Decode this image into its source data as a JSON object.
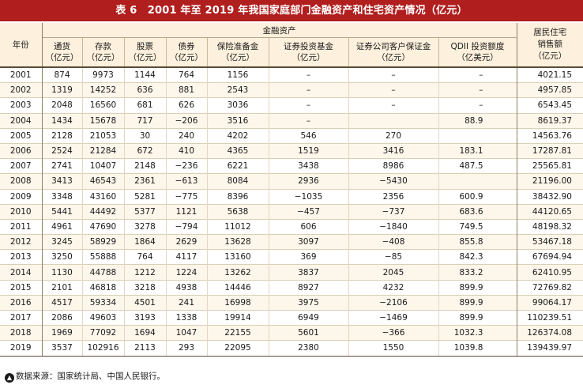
{
  "title": "表 6　2001 年至 2019 年我国家庭部门金融资产和住宅资产情况（亿元）",
  "header": {
    "year": "年份",
    "group": "金融资产",
    "columns": [
      "通货\n（亿元）",
      "存款\n（亿元）",
      "股票\n（亿元）",
      "债券\n（亿元）",
      "保险准备金\n（亿元）",
      "证券投资基金\n（亿元）",
      "证券公司客户保证金\n（亿元）",
      "QDII 投资额度\n（亿美元）"
    ],
    "housing": "居民住宅\n销售额\n（亿元）"
  },
  "rows": [
    [
      "2001",
      "874",
      "9973",
      "1144",
      "764",
      "1156",
      "–",
      "–",
      "–",
      "4021.15"
    ],
    [
      "2002",
      "1319",
      "14252",
      "636",
      "881",
      "2543",
      "–",
      "–",
      "–",
      "4957.85"
    ],
    [
      "2003",
      "2048",
      "16560",
      "681",
      "626",
      "3036",
      "–",
      "–",
      "–",
      "6543.45"
    ],
    [
      "2004",
      "1434",
      "15678",
      "717",
      "−206",
      "3516",
      "–",
      "",
      "88.9",
      "8619.37"
    ],
    [
      "2005",
      "2128",
      "21053",
      "30",
      "240",
      "4202",
      "546",
      "270",
      "",
      "14563.76"
    ],
    [
      "2006",
      "2524",
      "21284",
      "672",
      "410",
      "4365",
      "1519",
      "3416",
      "183.1",
      "17287.81"
    ],
    [
      "2007",
      "2741",
      "10407",
      "2148",
      "−236",
      "6221",
      "3438",
      "8986",
      "487.5",
      "25565.81"
    ],
    [
      "2008",
      "3413",
      "46543",
      "2361",
      "−613",
      "8084",
      "2936",
      "−5430",
      "",
      "21196.00"
    ],
    [
      "2009",
      "3348",
      "43160",
      "5281",
      "−775",
      "8396",
      "−1035",
      "2356",
      "600.9",
      "38432.90"
    ],
    [
      "2010",
      "5441",
      "44492",
      "5377",
      "1121",
      "5638",
      "−457",
      "−737",
      "683.6",
      "44120.65"
    ],
    [
      "2011",
      "4961",
      "47690",
      "3278",
      "−794",
      "11012",
      "606",
      "−1840",
      "749.5",
      "48198.32"
    ],
    [
      "2012",
      "3245",
      "58929",
      "1864",
      "2629",
      "13628",
      "3097",
      "−408",
      "855.8",
      "53467.18"
    ],
    [
      "2013",
      "3250",
      "55888",
      "764",
      "4117",
      "13160",
      "369",
      "−85",
      "842.3",
      "67694.94"
    ],
    [
      "2014",
      "1130",
      "44788",
      "1212",
      "1224",
      "13262",
      "3837",
      "2045",
      "833.2",
      "62410.95"
    ],
    [
      "2015",
      "2101",
      "46818",
      "3218",
      "4938",
      "14446",
      "8927",
      "4232",
      "899.9",
      "72769.82"
    ],
    [
      "2016",
      "4517",
      "59334",
      "4501",
      "241",
      "16998",
      "3975",
      "−2106",
      "899.9",
      "99064.17"
    ],
    [
      "2017",
      "2086",
      "49603",
      "3193",
      "1338",
      "19914",
      "6949",
      "−1469",
      "899.9",
      "110239.51"
    ],
    [
      "2018",
      "1969",
      "77092",
      "1694",
      "1047",
      "22155",
      "5601",
      "−366",
      "1032.3",
      "126374.08"
    ],
    [
      "2019",
      "3537",
      "102916",
      "2113",
      "293",
      "22095",
      "2380",
      "1550",
      "1039.8",
      "139439.97"
    ]
  ],
  "source": "数据来源：国家统计局、中国人民银行。",
  "colors": {
    "title_bg": "#b01e1e",
    "header_bg": "#fdf0dc"
  }
}
